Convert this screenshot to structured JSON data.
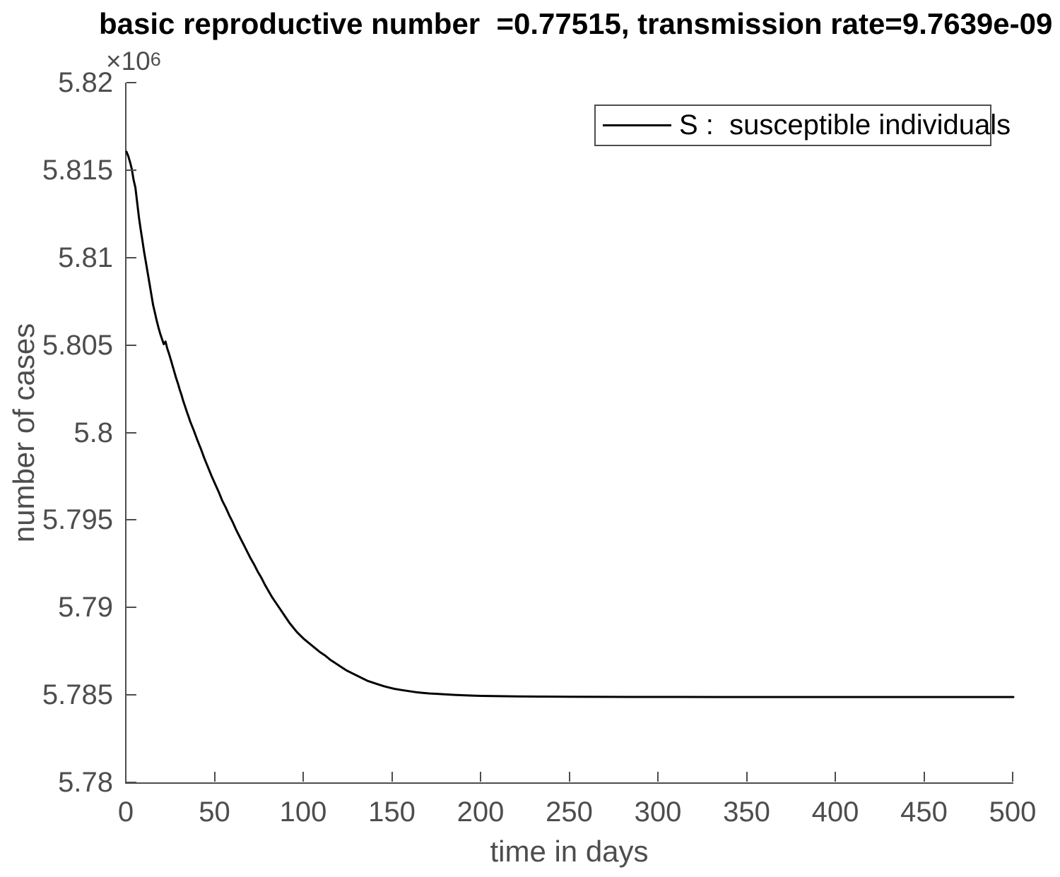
{
  "figure": {
    "title": "basic reproductive number  =0.77515, transmission rate=9.7639e-09",
    "xlabel": "time in days",
    "ylabel": "number of cases",
    "y_axis_multiplier_base": "×10",
    "y_axis_multiplier_exponent": "6",
    "legend_label": "S :  susceptible individuals",
    "colors": {
      "title_text": "#000000",
      "axis_and_ticks": "#4d4d4d",
      "series_line": "#000000",
      "legend_border": "#4d4d4d",
      "background": "#ffffff"
    }
  },
  "chart_data": {
    "type": "line",
    "title": "basic reproductive number  =0.77515, transmission rate=9.7639e-09",
    "xlabel": "time in days",
    "ylabel": "number of cases",
    "xlim": [
      0,
      500
    ],
    "ylim": [
      5780000,
      5820000
    ],
    "x_ticks": [
      0,
      50,
      100,
      150,
      200,
      250,
      300,
      350,
      400,
      450,
      500
    ],
    "y_ticks": [
      {
        "value": 5780000,
        "label": "5.78"
      },
      {
        "value": 5785000,
        "label": "5.785"
      },
      {
        "value": 5790000,
        "label": "5.79"
      },
      {
        "value": 5795000,
        "label": "5.795"
      },
      {
        "value": 5800000,
        "label": "5.8"
      },
      {
        "value": 5805000,
        "label": "5.805"
      },
      {
        "value": 5810000,
        "label": "5.81"
      },
      {
        "value": 5815000,
        "label": "5.815"
      },
      {
        "value": 5820000,
        "label": "5.82"
      }
    ],
    "y_multiplier": 1000000,
    "grid": false,
    "legend_position": "northeast",
    "series": [
      {
        "name": "S :  susceptible individuals",
        "color": "#000000",
        "points": [
          [
            0,
            5816050
          ],
          [
            1,
            5815800
          ],
          [
            2,
            5815460
          ],
          [
            3,
            5815060
          ],
          [
            4,
            5814450
          ],
          [
            5,
            5814000
          ],
          [
            6,
            5813150
          ],
          [
            7,
            5812300
          ],
          [
            8,
            5811600
          ],
          [
            9,
            5810950
          ],
          [
            10,
            5810280
          ],
          [
            11,
            5809700
          ],
          [
            12,
            5809100
          ],
          [
            13,
            5808500
          ],
          [
            14,
            5807900
          ],
          [
            15,
            5807300
          ],
          [
            16,
            5806850
          ],
          [
            17,
            5806400
          ],
          [
            18,
            5806000
          ],
          [
            19,
            5805650
          ],
          [
            20,
            5805350
          ],
          [
            21,
            5805050
          ],
          [
            22,
            5805200
          ],
          [
            23,
            5804800
          ],
          [
            24,
            5804500
          ],
          [
            25,
            5804150
          ],
          [
            26,
            5803800
          ],
          [
            27,
            5803450
          ],
          [
            28,
            5803100
          ],
          [
            29,
            5802800
          ],
          [
            30,
            5802450
          ],
          [
            31,
            5802150
          ],
          [
            32,
            5801800
          ],
          [
            33,
            5801500
          ],
          [
            34,
            5801200
          ],
          [
            35,
            5800900
          ],
          [
            36,
            5800600
          ],
          [
            38,
            5800100
          ],
          [
            40,
            5799550
          ],
          [
            42,
            5799050
          ],
          [
            44,
            5798500
          ],
          [
            46,
            5798000
          ],
          [
            48,
            5797500
          ],
          [
            50,
            5797050
          ],
          [
            52,
            5796600
          ],
          [
            54,
            5796100
          ],
          [
            56,
            5795700
          ],
          [
            58,
            5795250
          ],
          [
            60,
            5794850
          ],
          [
            62,
            5794400
          ],
          [
            64,
            5794000
          ],
          [
            66,
            5793600
          ],
          [
            68,
            5793200
          ],
          [
            70,
            5792800
          ],
          [
            72,
            5792450
          ],
          [
            74,
            5792050
          ],
          [
            76,
            5791700
          ],
          [
            78,
            5791300
          ],
          [
            80,
            5790950
          ],
          [
            82,
            5790600
          ],
          [
            84,
            5790300
          ],
          [
            86,
            5790000
          ],
          [
            88,
            5789700
          ],
          [
            90,
            5789400
          ],
          [
            92,
            5789100
          ],
          [
            94,
            5788850
          ],
          [
            96,
            5788600
          ],
          [
            98,
            5788400
          ],
          [
            100,
            5788200
          ],
          [
            103,
            5787950
          ],
          [
            106,
            5787700
          ],
          [
            109,
            5787450
          ],
          [
            112,
            5787250
          ],
          [
            115,
            5787000
          ],
          [
            118,
            5786800
          ],
          [
            121,
            5786600
          ],
          [
            124,
            5786400
          ],
          [
            127,
            5786250
          ],
          [
            130,
            5786100
          ],
          [
            133,
            5785950
          ],
          [
            136,
            5785800
          ],
          [
            139,
            5785700
          ],
          [
            142,
            5785600
          ],
          [
            145,
            5785500
          ],
          [
            148,
            5785420
          ],
          [
            151,
            5785350
          ],
          [
            155,
            5785280
          ],
          [
            159,
            5785220
          ],
          [
            163,
            5785160
          ],
          [
            167,
            5785120
          ],
          [
            171,
            5785080
          ],
          [
            175,
            5785060
          ],
          [
            180,
            5785030
          ],
          [
            185,
            5785000
          ],
          [
            190,
            5784980
          ],
          [
            195,
            5784960
          ],
          [
            200,
            5784945
          ],
          [
            210,
            5784930
          ],
          [
            220,
            5784915
          ],
          [
            235,
            5784905
          ],
          [
            250,
            5784898
          ],
          [
            270,
            5784890
          ],
          [
            290,
            5784885
          ],
          [
            310,
            5784882
          ],
          [
            340,
            5784880
          ],
          [
            380,
            5784880
          ],
          [
            420,
            5784880
          ],
          [
            460,
            5784880
          ],
          [
            500,
            5784880
          ]
        ]
      }
    ]
  }
}
